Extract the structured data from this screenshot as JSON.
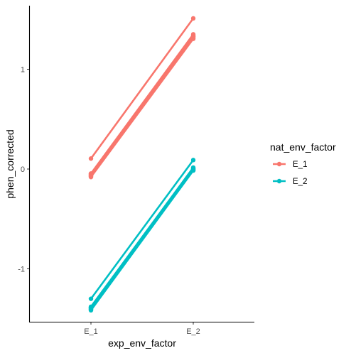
{
  "chart_data": {
    "type": "line",
    "title": "",
    "xlabel": "exp_env_factor",
    "ylabel": "phen_corrected",
    "categories": [
      "E_1",
      "E_2"
    ],
    "yticks": [
      -1,
      0,
      1
    ],
    "ylim": [
      -1.57,
      1.6
    ],
    "grid": false,
    "legend": {
      "title": "nat_env_factor",
      "placement": "right",
      "entries": [
        "E_1",
        "E_2"
      ]
    },
    "groups": [
      {
        "name": "E_1",
        "color": "#F8766D",
        "lines": [
          [
            0.105,
            1.51
          ],
          [
            -0.045,
            1.35
          ],
          [
            -0.05,
            1.34
          ],
          [
            -0.055,
            1.335
          ],
          [
            -0.06,
            1.33
          ],
          [
            -0.065,
            1.325
          ],
          [
            -0.07,
            1.32
          ],
          [
            -0.075,
            1.31
          ],
          [
            -0.08,
            1.305
          ]
        ]
      },
      {
        "name": "E_2",
        "color": "#00BFC4",
        "lines": [
          [
            -1.3,
            0.09
          ],
          [
            -1.38,
            0.015
          ],
          [
            -1.385,
            0.01
          ],
          [
            -1.39,
            0.005
          ],
          [
            -1.395,
            0.0
          ],
          [
            -1.4,
            -0.005
          ],
          [
            -1.405,
            -0.008
          ],
          [
            -1.41,
            -0.012
          ],
          [
            -1.415,
            -0.015
          ]
        ]
      }
    ]
  }
}
